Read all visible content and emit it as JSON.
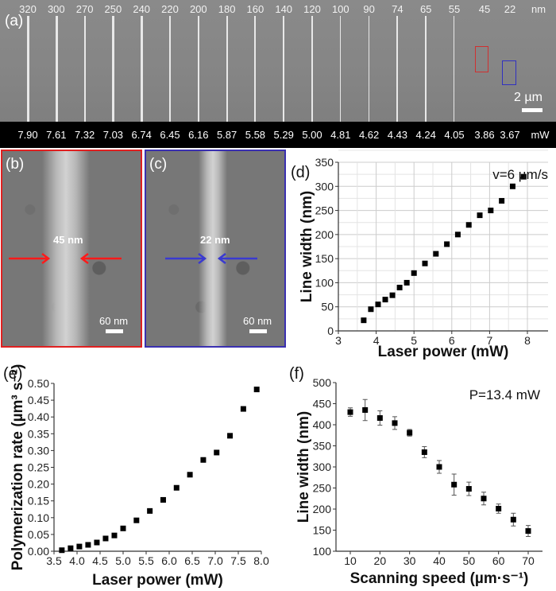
{
  "panel_a": {
    "label": "(a)",
    "widths_nm": [
      "320",
      "300",
      "270",
      "250",
      "240",
      "220",
      "200",
      "180",
      "160",
      "140",
      "120",
      "100",
      "90",
      "74",
      "65",
      "55",
      "45",
      "22"
    ],
    "width_unit": "nm",
    "powers_mW": [
      "7.90",
      "7.61",
      "7.32",
      "7.03",
      "6.74",
      "6.45",
      "6.16",
      "5.87",
      "5.58",
      "5.29",
      "5.00",
      "4.81",
      "4.62",
      "4.43",
      "4.24",
      "4.05",
      "3.86",
      "3.67"
    ],
    "power_unit": "mW",
    "scale_bar": "2 µm",
    "box_colors": {
      "b": "#d03030",
      "c": "#3030c0"
    }
  },
  "panel_b": {
    "label": "(b)",
    "width_text": "45 nm",
    "scale_bar": "60 nm",
    "border_color": "#e02020",
    "arrow_color": "#ff1a1a"
  },
  "panel_c": {
    "label": "(c)",
    "width_text": "22 nm",
    "scale_bar": "60 nm",
    "border_color": "#3a30b0",
    "arrow_color": "#3a3ad0"
  },
  "chart_data": [
    {
      "id": "d",
      "panel_label": "(d)",
      "type": "scatter",
      "annotation": "v=6 µm/s",
      "xlabel": "Laser power (mW)",
      "ylabel": "Line width (nm)",
      "xlim": [
        3,
        8.2
      ],
      "ylim": [
        0,
        350
      ],
      "xticks": [
        3,
        4,
        5,
        6,
        7,
        8
      ],
      "yticks": [
        0,
        50,
        100,
        150,
        200,
        250,
        300,
        350
      ],
      "grid": true,
      "x": [
        3.67,
        3.86,
        4.05,
        4.24,
        4.43,
        4.62,
        4.81,
        5.0,
        5.29,
        5.58,
        5.87,
        6.16,
        6.45,
        6.74,
        7.03,
        7.32,
        7.61,
        7.9
      ],
      "y": [
        22,
        45,
        55,
        65,
        74,
        90,
        100,
        120,
        140,
        160,
        180,
        200,
        220,
        240,
        250,
        270,
        300,
        320
      ]
    },
    {
      "id": "e",
      "panel_label": "(e)",
      "type": "scatter",
      "xlabel": "Laser power (mW)",
      "ylabel": "Polymerization rate (µm³ s⁻¹)",
      "xlim": [
        3.5,
        8.0
      ],
      "ylim": [
        0,
        0.5
      ],
      "xticks": [
        "3.5",
        "4.0",
        "4.5",
        "5.0",
        "5.5",
        "6.0",
        "6.5",
        "7.0",
        "7.5",
        "8.0"
      ],
      "yticks": [
        "0.00",
        "0.05",
        "0.10",
        "0.15",
        "0.20",
        "0.25",
        "0.30",
        "0.35",
        "0.40",
        "0.45",
        "0.50"
      ],
      "grid": false,
      "x": [
        3.67,
        3.86,
        4.05,
        4.24,
        4.43,
        4.62,
        4.81,
        5.0,
        5.29,
        5.58,
        5.87,
        6.16,
        6.45,
        6.74,
        7.03,
        7.32,
        7.61,
        7.9
      ],
      "y": [
        0.003,
        0.009,
        0.014,
        0.019,
        0.026,
        0.038,
        0.047,
        0.068,
        0.092,
        0.12,
        0.153,
        0.189,
        0.228,
        0.272,
        0.294,
        0.344,
        0.424,
        0.482
      ]
    },
    {
      "id": "f",
      "panel_label": "(f)",
      "type": "scatter",
      "annotation": "P=13.4 mW",
      "xlabel": "Scanning speed (µm·s⁻¹)",
      "ylabel": "Line width (nm)",
      "xlim": [
        2,
        75
      ],
      "ylim": [
        100,
        500
      ],
      "xticks": [
        10,
        20,
        30,
        40,
        50,
        60,
        70
      ],
      "yticks": [
        100,
        150,
        200,
        250,
        300,
        350,
        400,
        450,
        500
      ],
      "grid": false,
      "x": [
        10,
        15,
        20,
        25,
        30,
        35,
        40,
        45,
        50,
        55,
        60,
        65,
        70
      ],
      "y": [
        430,
        435,
        416,
        404,
        381,
        335,
        300,
        258,
        248,
        225,
        201,
        175,
        148
      ],
      "yerr": [
        10,
        25,
        17,
        15,
        8,
        13,
        15,
        25,
        16,
        15,
        11,
        15,
        13
      ]
    }
  ]
}
